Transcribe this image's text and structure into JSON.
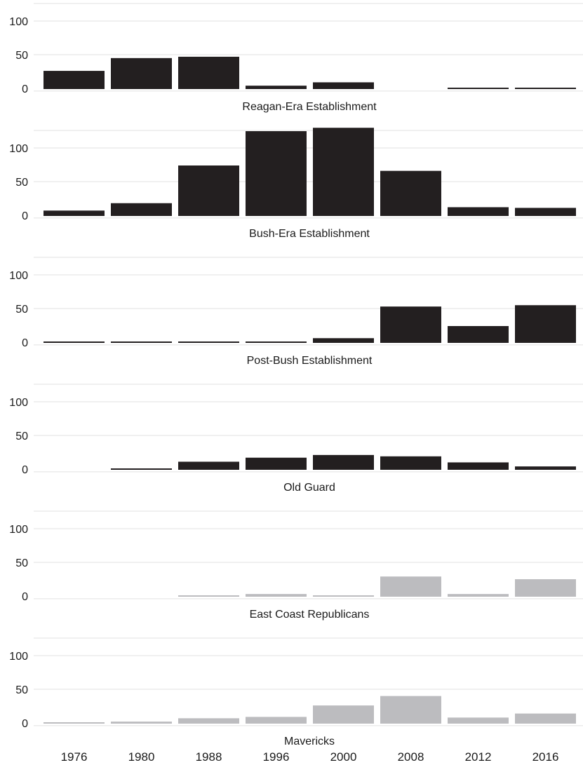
{
  "chart_data": {
    "type": "bar",
    "layout": "small-multiples",
    "categories": [
      "1976",
      "1980",
      "1988",
      "1996",
      "2000",
      "2008",
      "2012",
      "2016"
    ],
    "ylim": [
      0,
      120
    ],
    "yticks": [
      0,
      50,
      100
    ],
    "grid": true,
    "legend": "none",
    "panels": [
      {
        "title": "Reagan-Era Establishment",
        "color": "#231f20",
        "values": [
          27,
          46,
          48,
          5,
          10,
          0,
          1,
          2
        ]
      },
      {
        "title": "Bush-Era Establishment",
        "color": "#231f20",
        "values": [
          8,
          19,
          75,
          126,
          131,
          67,
          13,
          12
        ]
      },
      {
        "title": "Post-Bush Establishment",
        "color": "#231f20",
        "values": [
          1,
          2,
          2,
          2,
          7,
          54,
          25,
          56
        ]
      },
      {
        "title": "Old Guard",
        "color": "#231f20",
        "values": [
          0,
          2,
          12,
          18,
          22,
          20,
          11,
          5
        ]
      },
      {
        "title": "East Coast Republicans",
        "color": "#bcbcbf",
        "values": [
          0,
          0,
          2,
          4,
          1,
          30,
          4,
          26
        ]
      },
      {
        "title": "Mavericks",
        "color": "#bcbcbf",
        "values": [
          1,
          3,
          8,
          10,
          27,
          41,
          9,
          15
        ]
      }
    ]
  }
}
